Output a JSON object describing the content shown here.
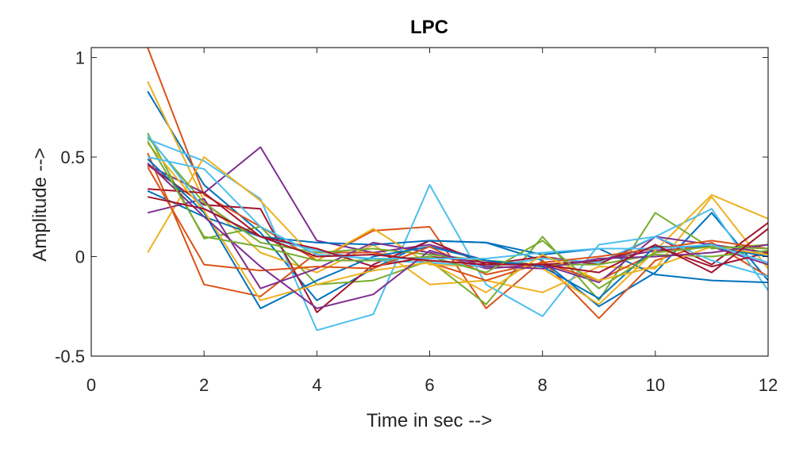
{
  "chart_data": {
    "type": "line",
    "title": "LPC",
    "xlabel": "Time in sec -->",
    "ylabel": "Amplitude -->",
    "xlim": [
      0,
      12
    ],
    "ylim": [
      -0.5,
      1.05
    ],
    "xticks": [
      "0",
      "2",
      "4",
      "6",
      "8",
      "10",
      "12"
    ],
    "xtick_values": [
      0,
      2,
      4,
      6,
      8,
      10,
      12
    ],
    "yticks": [
      "-0.5",
      "0",
      "0.5",
      "1"
    ],
    "ytick_values": [
      -0.5,
      0,
      0.5,
      1
    ],
    "grid": false,
    "x": [
      1,
      2,
      3,
      4,
      5,
      6,
      7,
      8,
      9,
      10,
      11,
      12
    ],
    "series": [
      {
        "color": "#0072BD",
        "values": [
          0.83,
          0.36,
          0.12,
          -0.22,
          -0.06,
          0.08,
          0.07,
          -0.02,
          -0.25,
          -0.08,
          0.22,
          -0.12
        ]
      },
      {
        "color": "#D95319",
        "values": [
          1.05,
          0.31,
          0.15,
          -0.02,
          0.13,
          0.15,
          -0.26,
          -0.02,
          -0.31,
          -0.02,
          0.07,
          -0.1
        ]
      },
      {
        "color": "#EDB120",
        "values": [
          0.88,
          0.28,
          0.02,
          -0.08,
          0.06,
          -0.14,
          -0.12,
          -0.18,
          -0.05,
          -0.06,
          0.3,
          -0.06
        ]
      },
      {
        "color": "#7E2F8E",
        "values": [
          0.46,
          0.32,
          0.55,
          0.08,
          0.02,
          0.06,
          -0.02,
          -0.05,
          -0.02,
          0.03,
          0.05,
          -0.04
        ]
      },
      {
        "color": "#77AC30",
        "values": [
          0.62,
          0.09,
          0.15,
          -0.14,
          -0.12,
          -0.02,
          -0.24,
          0.1,
          -0.22,
          0.22,
          0.04,
          0.06
        ]
      },
      {
        "color": "#4DBEEE",
        "values": [
          0.59,
          0.48,
          0.29,
          -0.37,
          -0.29,
          0.36,
          -0.14,
          -0.3,
          0.06,
          0.1,
          0.24,
          -0.17
        ]
      },
      {
        "color": "#A2142F",
        "values": [
          0.46,
          0.26,
          0.24,
          -0.28,
          -0.04,
          0.08,
          -0.04,
          0.0,
          -0.04,
          0.1,
          -0.04,
          0.17
        ]
      },
      {
        "color": "#0072BD",
        "values": [
          0.33,
          0.2,
          0.1,
          0.07,
          0.06,
          0.08,
          0.07,
          0.01,
          0.04,
          -0.09,
          -0.12,
          -0.13
        ]
      },
      {
        "color": "#D95319",
        "values": [
          0.52,
          -0.14,
          -0.2,
          0.02,
          0.02,
          -0.03,
          -0.12,
          -0.03,
          -0.12,
          0.02,
          0.06,
          0.02
        ]
      },
      {
        "color": "#EDB120",
        "values": [
          0.02,
          0.5,
          0.28,
          -0.02,
          0.14,
          -0.04,
          -0.05,
          -0.06,
          -0.24,
          0.03,
          0.31,
          0.19
        ]
      },
      {
        "color": "#7E2F8E",
        "values": [
          0.22,
          0.29,
          -0.16,
          -0.06,
          0.07,
          0.02,
          -0.06,
          -0.04,
          -0.13,
          0.1,
          0.06,
          0.02
        ]
      },
      {
        "color": "#77AC30",
        "values": [
          0.6,
          0.27,
          0.07,
          0.02,
          0.04,
          0.01,
          -0.02,
          -0.04,
          -0.04,
          0.01,
          0.0,
          0.03
        ]
      },
      {
        "color": "#4DBEEE",
        "values": [
          0.61,
          0.24,
          0.1,
          0.03,
          -0.02,
          -0.03,
          -0.05,
          -0.01,
          -0.03,
          0.1,
          -0.02,
          -0.1
        ]
      },
      {
        "color": "#A2142F",
        "values": [
          0.34,
          0.32,
          0.1,
          0.04,
          -0.05,
          0.0,
          -0.03,
          -0.04,
          -0.02,
          0.05,
          -0.05,
          0.02
        ]
      },
      {
        "color": "#0072BD",
        "values": [
          0.49,
          0.22,
          -0.26,
          -0.12,
          0.0,
          0.05,
          -0.02,
          -0.05,
          -0.21,
          0.05,
          0.05,
          0.0
        ]
      },
      {
        "color": "#D95319",
        "values": [
          0.45,
          -0.04,
          -0.07,
          -0.05,
          -0.06,
          0.05,
          -0.09,
          -0.03,
          0.0,
          0.04,
          0.08,
          0.04
        ]
      },
      {
        "color": "#EDB120",
        "values": [
          0.57,
          0.23,
          -0.22,
          -0.14,
          -0.07,
          -0.03,
          -0.18,
          0.01,
          -0.12,
          -0.05,
          0.05,
          0.01
        ]
      },
      {
        "color": "#7E2F8E",
        "values": [
          0.47,
          0.2,
          -0.05,
          -0.26,
          -0.19,
          0.03,
          -0.05,
          -0.06,
          -0.01,
          0.0,
          0.02,
          0.06
        ]
      },
      {
        "color": "#77AC30",
        "values": [
          0.58,
          0.1,
          0.05,
          -0.02,
          -0.02,
          0.0,
          -0.08,
          0.08,
          -0.16,
          0.02,
          0.05,
          0.04
        ]
      },
      {
        "color": "#4DBEEE",
        "values": [
          0.5,
          0.44,
          0.15,
          0.01,
          -0.01,
          -0.01,
          -0.01,
          0.02,
          0.04,
          0.04,
          0.06,
          -0.03
        ]
      },
      {
        "color": "#A2142F",
        "values": [
          0.3,
          0.24,
          0.1,
          0.0,
          0.01,
          -0.02,
          -0.04,
          -0.04,
          -0.08,
          0.06,
          -0.08,
          0.14
        ]
      }
    ]
  }
}
